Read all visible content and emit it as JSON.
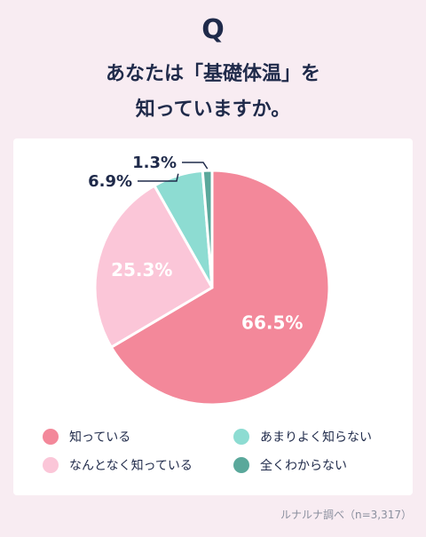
{
  "header": {
    "q_mark": "Q",
    "question_line1": "あなたは「基礎体温」を",
    "question_line2": "知っていますか。"
  },
  "colors": {
    "background": "#f8ecf2",
    "card": "#ffffff",
    "text": "#1f2a4a"
  },
  "chart_data": {
    "type": "pie",
    "title": "",
    "slices": [
      {
        "name": "知っている",
        "value": 66.5,
        "label": "66.5%",
        "color": "#f3889a"
      },
      {
        "name": "なんとなく知っている",
        "value": 25.3,
        "label": "25.3%",
        "color": "#fbc6d8"
      },
      {
        "name": "あまりよく知らない",
        "value": 6.9,
        "label": "6.9%",
        "color": "#8ddcd2"
      },
      {
        "name": "全くわからない",
        "value": 1.3,
        "label": "1.3%",
        "color": "#5aa89b"
      }
    ],
    "legend_position": "bottom"
  },
  "footer": {
    "source": "ルナルナ調べ（n=3,317）"
  }
}
